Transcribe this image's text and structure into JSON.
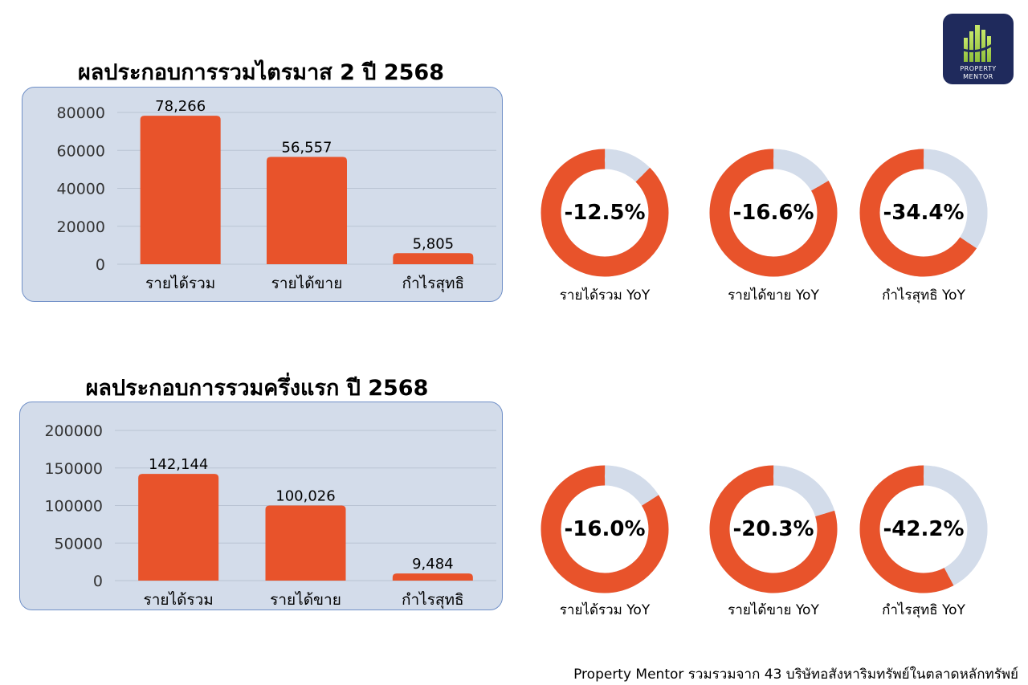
{
  "logo": {
    "line1": "PROPERTY",
    "line2": "MENTOR"
  },
  "footer": "Property Mentor รวมรวมจาก 43 บริษัทอสังหาริมทรัพย์ในตลาดหลักทรัพย์",
  "colors": {
    "bar": "#e8532b",
    "panel": "#d3dcea",
    "donut_track": "#d3dcea",
    "logo_bg": "#1f2a5c"
  },
  "chart_data": [
    {
      "type": "bar",
      "title": "ผลประกอบการรวมไตรมาส 2 ปี 2568",
      "categories": [
        "รายได้รวม",
        "รายได้ขาย",
        "กำไรสุทธิ"
      ],
      "values": [
        78266,
        56557,
        5805
      ],
      "value_labels": [
        "78,266",
        "56,557",
        "5,805"
      ],
      "ylim": [
        0,
        80000
      ],
      "yticks": [
        0,
        20000,
        40000,
        60000,
        80000
      ],
      "grid": true,
      "donuts": [
        {
          "value": -12.5,
          "text": "-12.5%",
          "label": "รายได้รวม  YoY"
        },
        {
          "value": -16.6,
          "text": "-16.6%",
          "label": "รายได้ขาย  YoY"
        },
        {
          "value": -34.4,
          "text": "-34.4%",
          "label": "กำไรสุทธิ  YoY"
        }
      ]
    },
    {
      "type": "bar",
      "title": "ผลประกอบการรวมครึ่งแรก ปี 2568",
      "categories": [
        "รายได้รวม",
        "รายได้ขาย",
        "กำไรสุทธิ"
      ],
      "values": [
        142144,
        100026,
        9484
      ],
      "value_labels": [
        "142,144",
        "100,026",
        "9,484"
      ],
      "ylim": [
        0,
        200000
      ],
      "yticks": [
        0,
        50000,
        100000,
        150000,
        200000
      ],
      "grid": true,
      "donuts": [
        {
          "value": -16.0,
          "text": "-16.0%",
          "label": "รายได้รวม  YoY"
        },
        {
          "value": -20.3,
          "text": "-20.3%",
          "label": "รายได้ขาย  YoY"
        },
        {
          "value": -42.2,
          "text": "-42.2%",
          "label": "กำไรสุทธิ  YoY"
        }
      ]
    }
  ]
}
